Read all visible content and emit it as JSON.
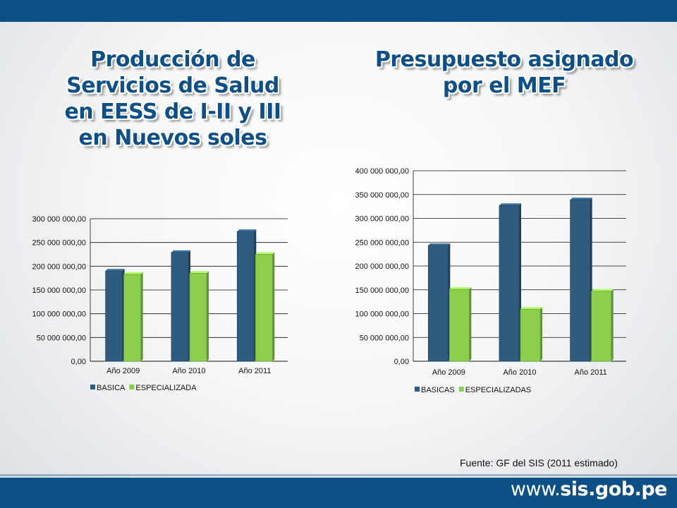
{
  "header": {
    "bar_color": "#0d4f87"
  },
  "left_title": {
    "lines": [
      "Producción de",
      "Servicios de Salud",
      "en EESS de I-II y III",
      "en Nuevos soles"
    ]
  },
  "right_title": {
    "lines": [
      "Presupuesto asignado",
      "por el MEF"
    ]
  },
  "source": "Fuente: GF del SIS (2011 estimado)",
  "footer": {
    "url_prefix": "www.",
    "url_domain": "sis.gob.pe"
  },
  "colors": {
    "blue": "#2f5b7e",
    "green": "#8ccf4d",
    "accent": "#0d4f87"
  },
  "chart_data": [
    {
      "type": "bar",
      "title": "",
      "categories": [
        "Año 2009",
        "Año 2010",
        "Año 2011"
      ],
      "series": [
        {
          "name": "BASICA",
          "values": [
            190000000,
            229000000,
            273000000
          ]
        },
        {
          "name": "ESPECIALIZADA",
          "values": [
            183000000,
            185000000,
            225000000
          ]
        }
      ],
      "ylim": [
        0,
        300000000
      ],
      "yticks": [
        "0,00",
        "50 000 000,00",
        "100 000 000,00",
        "150 000 000,00",
        "200 000 000,00",
        "250 000 000,00",
        "300 000 000,00"
      ],
      "legend": "bottom"
    },
    {
      "type": "bar",
      "title": "",
      "categories": [
        "Año 2009",
        "Año 2010",
        "Año 2011"
      ],
      "series": [
        {
          "name": "BASICAS",
          "values": [
            243000000,
            327000000,
            339000000
          ]
        },
        {
          "name": "ESPECIALIZADAS",
          "values": [
            151000000,
            109000000,
            147000000
          ]
        }
      ],
      "ylim": [
        0,
        400000000
      ],
      "yticks": [
        "0,00",
        "50 000 000,00",
        "100 000 000,00",
        "150 000 000,00",
        "200 000 000,00",
        "250 000 000,00",
        "300 000 000,00",
        "350 000 000,00",
        "400 000 000,00"
      ],
      "legend": "bottom"
    }
  ]
}
